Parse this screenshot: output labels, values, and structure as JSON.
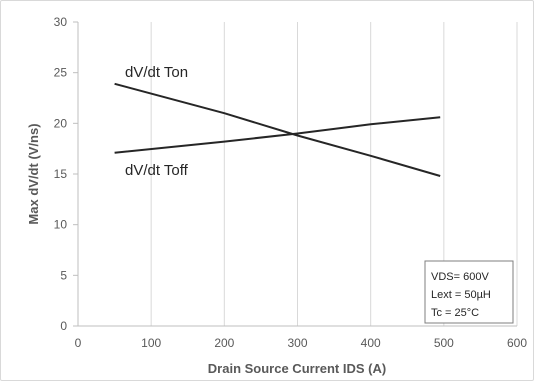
{
  "chart_data": {
    "type": "line",
    "xlabel": "Drain Source Current IDS (A)",
    "ylabel": "Max dV/dt (V/ns)",
    "xlim": [
      0,
      600
    ],
    "ylim": [
      0,
      30
    ],
    "xticks": [
      0,
      100,
      200,
      300,
      400,
      500,
      600
    ],
    "yticks": [
      0,
      5,
      10,
      15,
      20,
      25,
      30
    ],
    "grid": "vertical",
    "series": [
      {
        "name": "dV/dt Ton",
        "x": [
          50,
          200,
          300,
          400,
          495
        ],
        "y": [
          23.9,
          21.0,
          18.8,
          16.8,
          14.8
        ],
        "color": "#262626"
      },
      {
        "name": "dV/dt Toff",
        "x": [
          50,
          200,
          300,
          400,
          495
        ],
        "y": [
          17.1,
          18.2,
          19.0,
          19.9,
          20.6
        ],
        "color": "#262626"
      }
    ],
    "annotation": [
      "VDS= 600V",
      "Lext = 50µH",
      "Tc = 25°C"
    ]
  }
}
